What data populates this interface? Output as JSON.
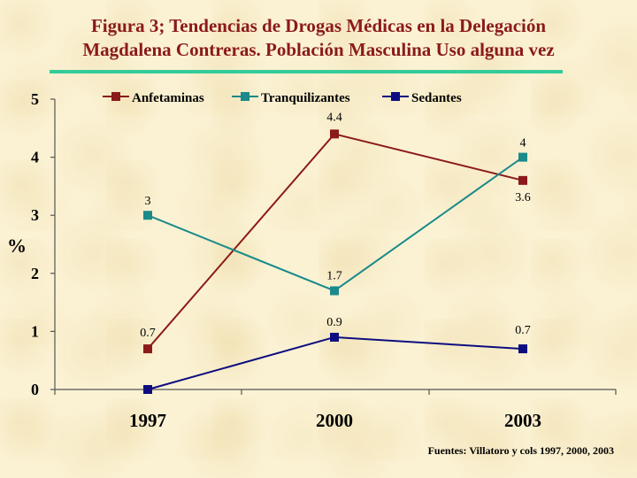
{
  "title_line1": "Figura 3; Tendencias de Drogas Médicas en  la Delegación",
  "title_line2": "Magdalena Contreras. Población Masculina Uso alguna vez",
  "source": "Fuentes: Villatoro y cols 1997, 2000, 2003",
  "colors": {
    "title": "#8b1a1a",
    "rule": "#33cc99"
  },
  "chart_data": {
    "type": "line",
    "categories": [
      "1997",
      "2000",
      "2003"
    ],
    "ylabel": "%",
    "xlabel": "",
    "ylim": [
      0,
      5
    ],
    "yticks": [
      "0",
      "1",
      "2",
      "3",
      "4",
      "5"
    ],
    "grid": false,
    "legend": "top",
    "series": [
      {
        "name": "Anfetaminas",
        "color": "#8b1a1a",
        "values": [
          0.7,
          4.4,
          3.6
        ],
        "labels": [
          "0.7",
          "4.4",
          "3.6"
        ]
      },
      {
        "name": "Tranquilizantes",
        "color": "#1a8a8a",
        "values": [
          3,
          1.7,
          4
        ],
        "labels": [
          "3",
          "1.7",
          "4"
        ]
      },
      {
        "name": "Sedantes",
        "color": "#0d0d80",
        "values": [
          0,
          0.9,
          0.7
        ],
        "labels": [
          "",
          "0.9",
          "0.7"
        ]
      }
    ]
  }
}
